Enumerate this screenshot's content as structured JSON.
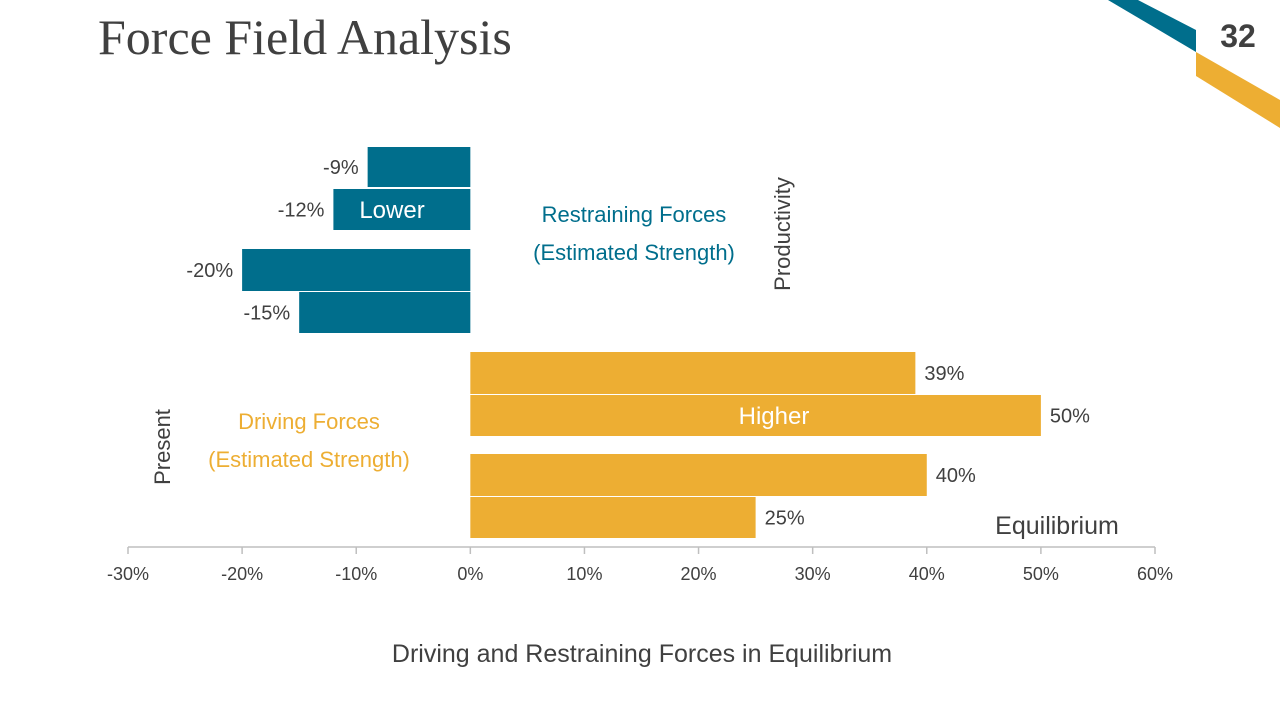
{
  "slide": {
    "title": "Force Field Analysis",
    "page_number": "32"
  },
  "colors": {
    "restraining": "#006E8C",
    "driving": "#EDAE33",
    "text": "#404040",
    "axis": "#BFBFBF"
  },
  "chart_data": {
    "type": "bar",
    "orientation": "horizontal",
    "title": "Driving and Restraining Forces in Equilibrium",
    "xlim": [
      -30,
      60
    ],
    "x_ticks": [
      -30,
      -20,
      -10,
      0,
      10,
      20,
      30,
      40,
      50,
      60
    ],
    "x_tick_labels": [
      "-30%",
      "-20%",
      "-10%",
      "0%",
      "10%",
      "20%",
      "30%",
      "40%",
      "50%",
      "60%"
    ],
    "grid": false,
    "series": [
      {
        "name": "Restraining Forces (Estimated Strength)",
        "values": [
          -9,
          -12,
          -20,
          -15
        ],
        "labels": [
          "-9%",
          "-12%",
          "-20%",
          "-15%"
        ]
      },
      {
        "name": "Driving Forces (Estimated Strength)",
        "values": [
          39,
          50,
          40,
          25
        ],
        "labels": [
          "39%",
          "50%",
          "40%",
          "25%"
        ]
      }
    ],
    "annotations": {
      "restraining_label_line1": "Restraining Forces",
      "restraining_label_line2": "(Estimated Strength)",
      "driving_label_line1": "Driving Forces",
      "driving_label_line2": "(Estimated Strength)",
      "lower": "Lower",
      "higher": "Higher",
      "productivity": "Productivity",
      "present": "Present",
      "equilibrium": "Equilibrium"
    }
  }
}
